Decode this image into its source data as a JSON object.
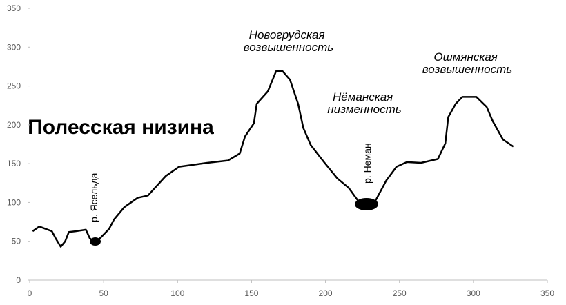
{
  "chart_data": {
    "type": "line",
    "x": [
      2,
      6.5,
      15,
      17.5,
      21,
      24,
      26.5,
      31,
      38,
      40.6,
      44,
      47.6,
      53.7,
      57,
      64,
      73,
      80,
      92,
      101,
      120,
      134,
      142,
      145.6,
      151.6,
      153.5,
      161,
      166.6,
      171,
      176,
      181.5,
      185,
      190,
      199,
      208,
      215.6,
      221.7,
      227,
      234,
      241,
      248,
      255,
      264.6,
      276,
      281,
      283,
      288,
      292.5,
      302,
      309,
      313,
      320,
      327
    ],
    "series": [
      {
        "color": "#000000",
        "values": [
          63,
          69,
          63,
          54,
          43,
          50,
          62,
          63,
          65,
          54,
          48,
          54,
          66,
          78,
          94,
          106,
          109,
          134,
          146,
          151,
          154,
          163,
          185,
          202,
          227,
          243,
          269,
          269,
          258,
          227,
          196,
          174,
          152,
          131,
          119,
          103,
          94,
          103,
          128,
          146,
          152,
          151,
          156,
          176,
          210,
          227,
          236,
          236,
          223,
          205,
          181,
          172
        ]
      }
    ],
    "xlim": [
      0,
      350
    ],
    "ylim": [
      0,
      350
    ],
    "xticks": [
      0,
      50,
      100,
      150,
      200,
      250,
      300,
      350
    ],
    "yticks": [
      0,
      50,
      100,
      150,
      200,
      250,
      300,
      350
    ],
    "grid": false,
    "annotations": [
      "Полесская низина",
      "р. Ясельда",
      "Новогрудская возвышенность",
      "Нёманская низменность",
      "р. Неман",
      "Ошмянская возвышенность"
    ]
  }
}
